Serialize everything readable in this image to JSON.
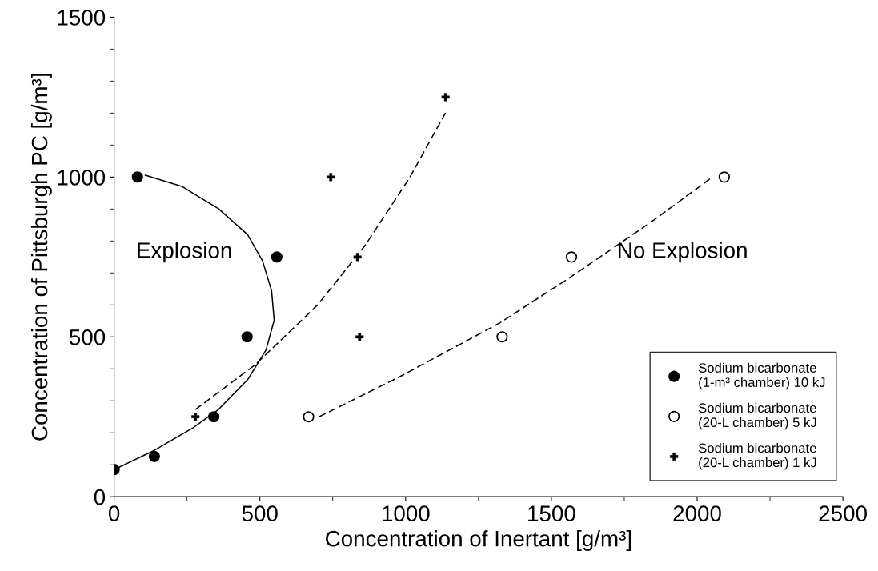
{
  "chart_data": {
    "type": "scatter",
    "xlabel": "Concentration of Inertant [g/m³]",
    "ylabel": "Concentration of Pittsburgh PC [g/m³]",
    "xlim": [
      0,
      2500
    ],
    "xticks": [
      0,
      500,
      1000,
      1500,
      2000,
      2500
    ],
    "ylim": [
      0,
      1500
    ],
    "yticks": [
      0,
      500,
      1000,
      1500
    ],
    "grid": false,
    "legend": "bottom right",
    "annotations": [
      "Explosion",
      "No Explosion"
    ],
    "series": [
      {
        "name": "Sodium bicarbonate\n(1-m³ chamber) 10 kJ",
        "marker": "circle",
        "color": "#000000",
        "x": [
          0,
          80,
          138,
          342,
          456,
          558
        ],
        "values": [
          85,
          1000,
          126,
          250,
          500,
          750
        ]
      },
      {
        "name": "Sodium bicarbonate\n(20-L chamber) 5 kJ",
        "marker": "circle",
        "color": "#ffffff",
        "x": [
          667,
          1331,
          1569,
          2093
        ],
        "values": [
          250,
          500,
          750,
          1000
        ]
      },
      {
        "name": "Sodium bicarbonate\n(20-L chamber) 1 kJ",
        "marker": "cross",
        "color": "#000000",
        "x": [
          279,
          743,
          835,
          842,
          1137
        ],
        "values": [
          250,
          1000,
          750,
          500,
          1250
        ]
      },
      {
        "type": "line",
        "line_style": "solid",
        "color": "#000000",
        "x": [
          0,
          138,
          270,
          358,
          458,
          521,
          549,
          540,
          509,
          458,
          358,
          232,
          107
        ],
        "values": [
          85,
          145,
          215,
          273,
          366,
          459,
          552,
          645,
          738,
          820,
          901,
          971,
          1006
        ]
      },
      {
        "type": "line",
        "line_style": "dashed",
        "color": "#000000",
        "x": [
          279,
          484,
          697,
          860,
          1011,
          1139
        ],
        "values": [
          273,
          413,
          599,
          785,
          994,
          1204
        ]
      },
      {
        "type": "line",
        "line_style": "dashed",
        "color": "#000000",
        "x": [
          703,
          979,
          1324,
          1569,
          1840,
          2045
        ],
        "values": [
          250,
          375,
          544,
          689,
          858,
          995
        ]
      }
    ]
  }
}
